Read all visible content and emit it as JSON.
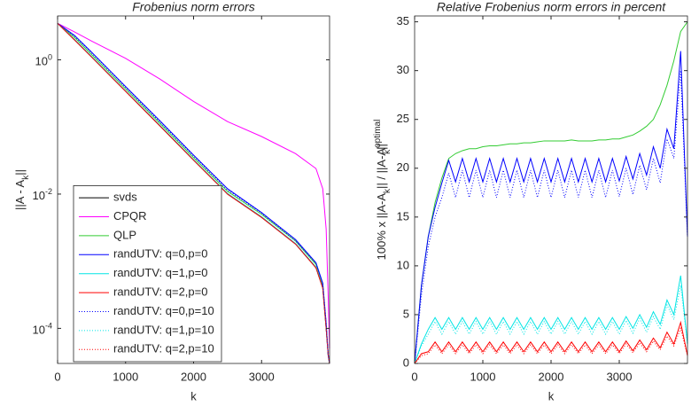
{
  "chart_data": [
    {
      "type": "line",
      "title": "Frobenius norm errors",
      "xlabel": "k",
      "ylabel_parts": [
        {
          "text": "||A - A"
        },
        {
          "text": "k",
          "shift": "sub"
        },
        {
          "text": "||"
        }
      ],
      "log_y": true,
      "legend": "lower left",
      "xlim": [
        0,
        4000
      ],
      "xticks": [
        0,
        1000,
        2000,
        3000
      ],
      "ylim": [
        3e-05,
        4.5
      ],
      "yticks": [
        {
          "value": 0.0001,
          "label": "10",
          "exp": "-4"
        },
        {
          "value": 0.01,
          "label": "10",
          "exp": "-2"
        },
        {
          "value": 1,
          "label": "10",
          "exp": "0"
        }
      ],
      "x": [
        0,
        250,
        500,
        1000,
        1500,
        2000,
        2500,
        3000,
        3500,
        3800,
        3900,
        3950,
        3980,
        4000
      ],
      "series": [
        {
          "name": "svds",
          "color": "#000000",
          "dash": false,
          "values": [
            3.5,
            1.97,
            1.1,
            0.34,
            0.105,
            0.032,
            0.01,
            0.0045,
            0.0018,
            0.0008,
            0.0004,
            0.0001,
            4e-05,
            3e-05
          ]
        },
        {
          "name": "CPQR",
          "color": "#ff00ff",
          "dash": false,
          "values": [
            3.5,
            2.6,
            1.9,
            1.05,
            0.52,
            0.24,
            0.12,
            0.072,
            0.04,
            0.024,
            0.012,
            0.003,
            0.0003,
            5e-05
          ]
        },
        {
          "name": "QLP",
          "color": "#33cc33",
          "dash": false,
          "values": [
            3.5,
            2.15,
            1.2,
            0.37,
            0.115,
            0.035,
            0.011,
            0.005,
            0.002,
            0.0009,
            0.00045,
            0.00011,
            4e-05,
            3e-05
          ]
        },
        {
          "name": "randUTV: q=0,p=0",
          "color": "#0000ff",
          "dash": false,
          "values": [
            3.5,
            2.3,
            1.3,
            0.4,
            0.125,
            0.038,
            0.012,
            0.0053,
            0.0021,
            0.00095,
            0.00047,
            0.00012,
            4e-05,
            3e-05
          ]
        },
        {
          "name": "randUTV: q=1,p=0",
          "color": "#00e5e5",
          "dash": false,
          "values": [
            3.5,
            2.0,
            1.12,
            0.345,
            0.107,
            0.0326,
            0.0102,
            0.0046,
            0.00183,
            0.00082,
            0.00041,
            0.0001,
            4e-05,
            3e-05
          ]
        },
        {
          "name": "randUTV: q=2,p=0",
          "color": "#ff0000",
          "dash": false,
          "values": [
            3.5,
            1.98,
            1.1,
            0.341,
            0.105,
            0.0321,
            0.01,
            0.0045,
            0.0018,
            0.0008,
            0.0004,
            0.0001,
            4e-05,
            3e-05
          ]
        },
        {
          "name": "randUTV: q=0,p=10",
          "color": "#0000ff",
          "dash": true,
          "values": [
            3.5,
            2.25,
            1.27,
            0.39,
            0.12,
            0.037,
            0.0115,
            0.0052,
            0.002,
            0.00093,
            0.00046,
            0.00012,
            4e-05,
            3e-05
          ]
        },
        {
          "name": "randUTV: q=1,p=10",
          "color": "#00e5e5",
          "dash": true,
          "values": [
            3.5,
            2.0,
            1.11,
            0.343,
            0.106,
            0.0324,
            0.0101,
            0.0046,
            0.00182,
            0.00081,
            0.0004,
            0.0001,
            4e-05,
            3e-05
          ]
        },
        {
          "name": "randUTV: q=2,p=10",
          "color": "#ff0000",
          "dash": true,
          "values": [
            3.5,
            1.97,
            1.1,
            0.34,
            0.105,
            0.032,
            0.01,
            0.0045,
            0.0018,
            0.0008,
            0.0004,
            0.0001,
            4e-05,
            3e-05
          ]
        }
      ]
    },
    {
      "type": "line",
      "title": "Relative Frobenius norm errors in percent",
      "xlabel": "k",
      "ylabel_parts": [
        {
          "text": "100% x ||A-A"
        },
        {
          "text": "k",
          "shift": "sub"
        },
        {
          "text": "|| / ||A-A"
        },
        {
          "text": "optimal",
          "shift": "sup"
        },
        {
          "text": "k",
          "shift": "sub"
        },
        {
          "text": "||"
        }
      ],
      "log_y": false,
      "xlim": [
        0,
        4000
      ],
      "xticks": [
        0,
        1000,
        2000,
        3000
      ],
      "ylim": [
        0,
        35.6
      ],
      "yticks": [
        0,
        5,
        10,
        15,
        20,
        25,
        30,
        35
      ],
      "x": [
        0,
        100,
        200,
        300,
        400,
        500,
        600,
        700,
        800,
        900,
        1000,
        1100,
        1200,
        1300,
        1400,
        1500,
        1600,
        1700,
        1800,
        1900,
        2000,
        2100,
        2200,
        2300,
        2400,
        2500,
        2600,
        2700,
        2800,
        2900,
        3000,
        3100,
        3200,
        3300,
        3400,
        3500,
        3600,
        3700,
        3800,
        3900,
        4000
      ],
      "series": [
        {
          "color": "#33cc33",
          "dash": false,
          "values": [
            0,
            8,
            13,
            16.5,
            19,
            21,
            21.5,
            21.8,
            22,
            22,
            22.2,
            22.3,
            22.3,
            22.4,
            22.5,
            22.5,
            22.6,
            22.6,
            22.7,
            22.8,
            22.8,
            22.8,
            22.8,
            22.9,
            22.8,
            22.8,
            22.8,
            22.9,
            22.9,
            23,
            23,
            23.2,
            23.4,
            23.8,
            24.3,
            25,
            26.5,
            28.5,
            31,
            34,
            35
          ]
        },
        {
          "color": "#0000ff",
          "dash": false,
          "values": [
            0,
            8,
            13,
            16,
            18.5,
            20.8,
            18.6,
            21,
            18.6,
            21,
            18.6,
            21,
            18.6,
            21,
            18.6,
            21,
            18.6,
            21,
            18.6,
            21,
            18.6,
            21,
            18.6,
            21,
            18.6,
            21,
            18.6,
            21,
            18.6,
            21,
            18.7,
            21.2,
            18.9,
            21.5,
            19.3,
            22.2,
            20,
            24,
            22,
            32,
            13
          ]
        },
        {
          "color": "#0000ff",
          "dash": true,
          "values": [
            0,
            7,
            12,
            15,
            17,
            19.5,
            17,
            19.8,
            17,
            19.8,
            17,
            19.8,
            17,
            19.8,
            17,
            19.8,
            17,
            19.8,
            17,
            19.8,
            17,
            19.8,
            17,
            19.8,
            17,
            19.8,
            17,
            19.8,
            17,
            19.8,
            17.1,
            20,
            17.3,
            20.3,
            17.8,
            21,
            18.5,
            23,
            21,
            30,
            13
          ]
        },
        {
          "color": "#00e5e5",
          "dash": false,
          "values": [
            0,
            2,
            3.5,
            4.7,
            3.5,
            4.7,
            3.5,
            4.7,
            3.5,
            4.7,
            3.5,
            4.7,
            3.5,
            4.7,
            3.5,
            4.7,
            3.5,
            4.7,
            3.5,
            4.7,
            3.5,
            4.7,
            3.5,
            4.7,
            3.5,
            4.7,
            3.5,
            4.7,
            3.5,
            4.7,
            3.5,
            4.8,
            3.6,
            5,
            3.7,
            5.3,
            4,
            6.5,
            5,
            9,
            2
          ]
        },
        {
          "color": "#00e5e5",
          "dash": true,
          "values": [
            0,
            1.8,
            3,
            4.3,
            3,
            4.3,
            3,
            4.3,
            3,
            4.3,
            3,
            4.3,
            3,
            4.3,
            3,
            4.3,
            3,
            4.3,
            3,
            4.3,
            3,
            4.3,
            3,
            4.3,
            3,
            4.3,
            3,
            4.3,
            3,
            4.3,
            3,
            4.4,
            3.1,
            4.6,
            3.2,
            4.8,
            3.5,
            6,
            4.5,
            8,
            2
          ]
        },
        {
          "color": "#ff0000",
          "dash": false,
          "values": [
            0,
            1,
            1.2,
            2.2,
            1.2,
            2.2,
            1.2,
            2.2,
            1.2,
            2.2,
            1.2,
            2.2,
            1.2,
            2.2,
            1.2,
            2.2,
            1.2,
            2.2,
            1.2,
            2.2,
            1.2,
            2.2,
            1.2,
            2.2,
            1.2,
            2.2,
            1.2,
            2.2,
            1.2,
            2.2,
            1.2,
            2.3,
            1.3,
            2.4,
            1.4,
            2.6,
            1.6,
            3.2,
            2,
            4.2,
            0.8
          ]
        },
        {
          "color": "#ff0000",
          "dash": true,
          "values": [
            0,
            0.8,
            1,
            1.9,
            1,
            1.9,
            1,
            1.9,
            1,
            1.9,
            1,
            1.9,
            1,
            1.9,
            1,
            1.9,
            1,
            1.9,
            1,
            1.9,
            1,
            1.9,
            1,
            1.9,
            1,
            1.9,
            1,
            1.9,
            1,
            1.9,
            1,
            2,
            1.1,
            2.1,
            1.2,
            2.3,
            1.4,
            2.8,
            1.8,
            3.6,
            0.8
          ]
        }
      ]
    }
  ]
}
